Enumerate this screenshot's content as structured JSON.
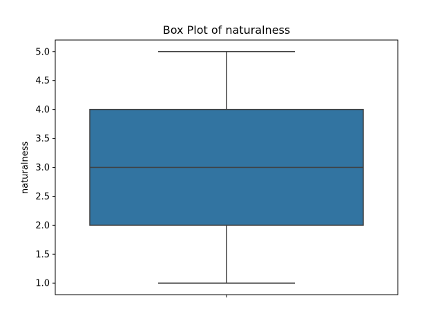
{
  "chart_data": {
    "type": "box",
    "title": "Box Plot of naturalness",
    "xlabel": "",
    "ylabel": "naturalness",
    "ylim": [
      0.8,
      5.2
    ],
    "y_ticks": [
      "1.0",
      "1.5",
      "2.0",
      "2.5",
      "3.0",
      "3.5",
      "4.0",
      "4.5",
      "5.0"
    ],
    "box": {
      "whisker_low": 1.0,
      "q1": 2.0,
      "median": 3.0,
      "q3": 4.0,
      "whisker_high": 5.0
    },
    "grid": false,
    "legend": "none",
    "colors": {
      "box_fill": "#3274a1",
      "lines": "#3f3f3f",
      "axes": "#000000"
    }
  }
}
